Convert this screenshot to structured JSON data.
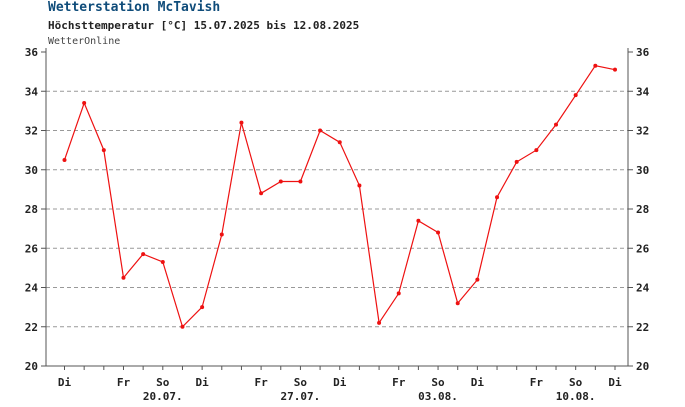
{
  "header": {
    "title": "Wetterstation McTavish",
    "subtitle": "Höchsttemperatur [°C] 15.07.2025 bis 12.08.2025",
    "source": "WetterOnline"
  },
  "colors": {
    "line": "#ee1111",
    "axis": "#555555",
    "grid": "#999999",
    "title": "#0f4c7a"
  },
  "chart_data": {
    "type": "line",
    "title": "Wetterstation McTavish",
    "subtitle": "Höchsttemperatur [°C] 15.07.2025 bis 12.08.2025",
    "xlabel": "",
    "ylabel": "",
    "ylim": [
      20,
      36
    ],
    "yticks": [
      "20",
      "22",
      "24",
      "26",
      "28",
      "30",
      "32",
      "34",
      "36"
    ],
    "grid": true,
    "legend": "none",
    "x": [
      "15.07.",
      "16.07.",
      "17.07.",
      "18.07.",
      "19.07.",
      "20.07.",
      "21.07.",
      "22.07.",
      "23.07.",
      "24.07.",
      "25.07.",
      "26.07.",
      "27.07.",
      "28.07.",
      "29.07.",
      "30.07.",
      "31.07.",
      "01.08.",
      "02.08.",
      "03.08.",
      "04.08.",
      "05.08.",
      "06.08.",
      "07.08.",
      "08.08.",
      "09.08.",
      "10.08.",
      "11.08.",
      "12.08."
    ],
    "series": [
      {
        "values": [
          30.5,
          33.4,
          31.0,
          24.5,
          25.7,
          25.3,
          22.0,
          23.0,
          26.7,
          32.4,
          28.8,
          29.4,
          29.4,
          32.0,
          31.4,
          29.2,
          22.2,
          23.7,
          27.4,
          26.8,
          23.2,
          24.4,
          28.6,
          30.4,
          31.0,
          32.3,
          33.8,
          35.3,
          35.1
        ]
      }
    ],
    "day_labels": [
      {
        "index": 0,
        "text": "Di"
      },
      {
        "index": 3,
        "text": "Fr"
      },
      {
        "index": 5,
        "text": "So"
      },
      {
        "index": 7,
        "text": "Di"
      },
      {
        "index": 10,
        "text": "Fr"
      },
      {
        "index": 12,
        "text": "So"
      },
      {
        "index": 14,
        "text": "Di"
      },
      {
        "index": 17,
        "text": "Fr"
      },
      {
        "index": 19,
        "text": "So"
      },
      {
        "index": 21,
        "text": "Di"
      },
      {
        "index": 24,
        "text": "Fr"
      },
      {
        "index": 26,
        "text": "So"
      },
      {
        "index": 28,
        "text": "Di"
      }
    ],
    "date_labels": [
      {
        "index": 5,
        "text": "20.07."
      },
      {
        "index": 12,
        "text": "27.07."
      },
      {
        "index": 19,
        "text": "03.08."
      },
      {
        "index": 26,
        "text": "10.08."
      }
    ]
  }
}
